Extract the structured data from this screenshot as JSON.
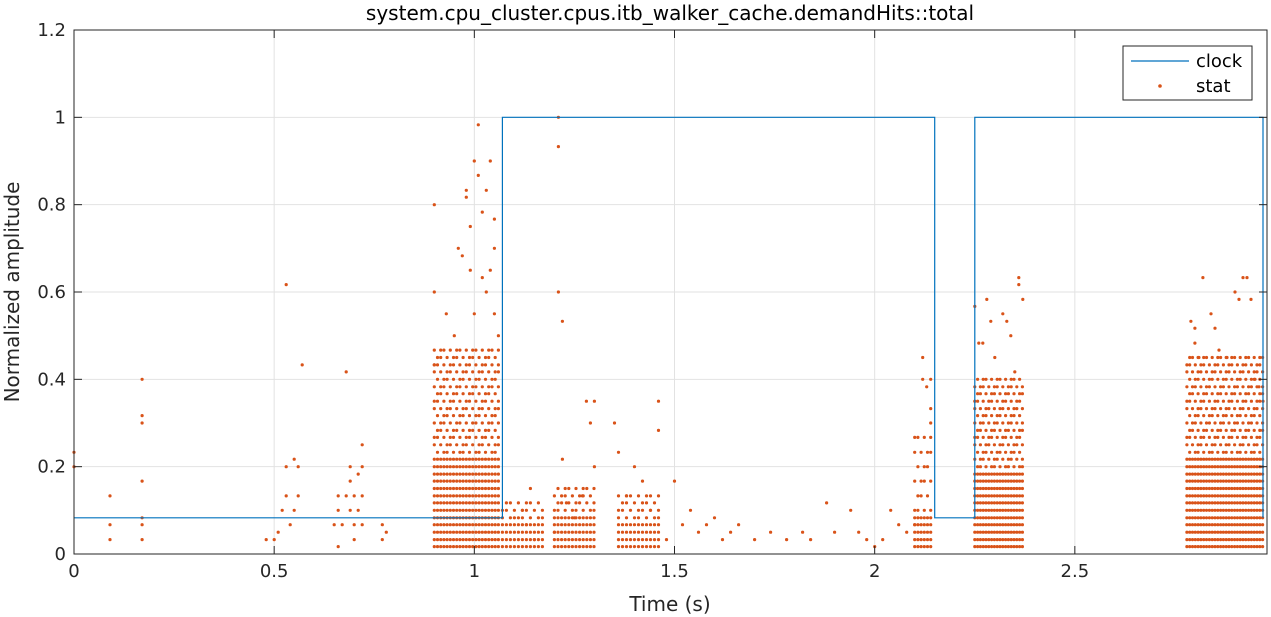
{
  "chart_data": {
    "type": "line",
    "title": "system.cpu_cluster.cpus.itb_walker_cache.demandHits::total",
    "xlabel": "Time (s)",
    "ylabel": "Normalized amplitude",
    "xlim": [
      0,
      2.98
    ],
    "ylim": [
      0,
      1.2
    ],
    "xticks": [
      "0",
      "0.5",
      "1",
      "1.5",
      "2",
      "2.5"
    ],
    "xtick_values": [
      0,
      0.5,
      1,
      1.5,
      2,
      2.5
    ],
    "yticks": [
      "0",
      "0.2",
      "0.4",
      "0.6",
      "0.8",
      "1",
      "1.2"
    ],
    "ytick_values": [
      0,
      0.2,
      0.4,
      0.6,
      0.8,
      1.0,
      1.2
    ],
    "grid": true,
    "legend_position": "top-right",
    "series": [
      {
        "name": "clock",
        "style": "line",
        "color": "#0072BD",
        "x": [
          0,
          1.07,
          1.07,
          2.15,
          2.15,
          2.25,
          2.25,
          2.97,
          2.97
        ],
        "y": [
          0.083,
          0.083,
          1.0,
          1.0,
          0.083,
          0.083,
          1.0,
          1.0,
          0.083
        ]
      },
      {
        "name": "stat",
        "style": "points",
        "color": "#D95319",
        "points": [
          [
            0.0,
            0.2
          ],
          [
            0.0,
            0.233
          ],
          [
            0.09,
            0.033
          ],
          [
            0.09,
            0.067
          ],
          [
            0.09,
            0.133
          ],
          [
            0.17,
            0.033
          ],
          [
            0.17,
            0.067
          ],
          [
            0.17,
            0.083
          ],
          [
            0.17,
            0.167
          ],
          [
            0.17,
            0.3
          ],
          [
            0.17,
            0.317
          ],
          [
            0.17,
            0.4
          ],
          [
            0.48,
            0.033
          ],
          [
            0.5,
            0.033
          ],
          [
            0.51,
            0.05
          ],
          [
            0.52,
            0.1
          ],
          [
            0.53,
            0.133
          ],
          [
            0.53,
            0.2
          ],
          [
            0.53,
            0.617
          ],
          [
            0.54,
            0.067
          ],
          [
            0.55,
            0.1
          ],
          [
            0.55,
            0.217
          ],
          [
            0.56,
            0.133
          ],
          [
            0.56,
            0.2
          ],
          [
            0.57,
            0.433
          ],
          [
            0.65,
            0.067
          ],
          [
            0.66,
            0.1
          ],
          [
            0.66,
            0.133
          ],
          [
            0.66,
            0.017
          ],
          [
            0.67,
            0.067
          ],
          [
            0.68,
            0.133
          ],
          [
            0.68,
            0.417
          ],
          [
            0.69,
            0.1
          ],
          [
            0.69,
            0.167
          ],
          [
            0.69,
            0.2
          ],
          [
            0.7,
            0.067
          ],
          [
            0.7,
            0.133
          ],
          [
            0.7,
            0.033
          ],
          [
            0.71,
            0.183
          ],
          [
            0.71,
            0.1
          ],
          [
            0.72,
            0.067
          ],
          [
            0.72,
            0.25
          ],
          [
            0.72,
            0.2
          ],
          [
            0.72,
            0.133
          ],
          [
            0.77,
            0.067
          ],
          [
            0.77,
            0.033
          ],
          [
            0.78,
            0.05
          ],
          [
            0.9,
            0.8
          ],
          [
            0.9,
            0.6
          ],
          [
            0.9,
            0.433
          ],
          [
            0.93,
            0.55
          ],
          [
            0.95,
            0.5
          ],
          [
            0.96,
            0.7
          ],
          [
            0.97,
            0.683
          ],
          [
            0.98,
            0.833
          ],
          [
            0.98,
            0.817
          ],
          [
            0.99,
            0.75
          ],
          [
            0.99,
            0.65
          ],
          [
            1.0,
            0.9
          ],
          [
            1.0,
            0.55
          ],
          [
            1.01,
            0.983
          ],
          [
            1.01,
            0.867
          ],
          [
            1.02,
            0.783
          ],
          [
            1.02,
            0.633
          ],
          [
            1.03,
            0.6
          ],
          [
            1.03,
            0.833
          ],
          [
            1.04,
            0.9
          ],
          [
            1.04,
            0.65
          ],
          [
            1.05,
            0.7
          ],
          [
            1.05,
            0.767
          ],
          [
            1.05,
            0.55
          ],
          [
            1.06,
            0.5
          ],
          [
            1.1,
            0.083
          ],
          [
            1.12,
            0.1
          ],
          [
            1.13,
            0.067
          ],
          [
            1.14,
            0.15
          ],
          [
            1.15,
            0.033
          ],
          [
            1.2,
            0.05
          ],
          [
            1.21,
            1.0
          ],
          [
            1.21,
            0.933
          ],
          [
            1.21,
            0.6
          ],
          [
            1.22,
            0.533
          ],
          [
            1.22,
            0.217
          ],
          [
            1.23,
            0.117
          ],
          [
            1.25,
            0.083
          ],
          [
            1.27,
            0.133
          ],
          [
            1.28,
            0.35
          ],
          [
            1.29,
            0.3
          ],
          [
            1.3,
            0.35
          ],
          [
            1.3,
            0.2
          ],
          [
            1.35,
            0.3
          ],
          [
            1.36,
            0.233
          ],
          [
            1.38,
            0.133
          ],
          [
            1.4,
            0.2
          ],
          [
            1.42,
            0.167
          ],
          [
            1.44,
            0.1
          ],
          [
            1.46,
            0.35
          ],
          [
            1.46,
            0.283
          ],
          [
            1.48,
            0.033
          ],
          [
            1.5,
            0.167
          ],
          [
            1.52,
            0.067
          ],
          [
            1.54,
            0.1
          ],
          [
            1.56,
            0.05
          ],
          [
            1.58,
            0.067
          ],
          [
            1.6,
            0.083
          ],
          [
            1.62,
            0.033
          ],
          [
            1.64,
            0.05
          ],
          [
            1.66,
            0.067
          ],
          [
            1.7,
            0.033
          ],
          [
            1.74,
            0.05
          ],
          [
            1.78,
            0.033
          ],
          [
            1.82,
            0.05
          ],
          [
            1.84,
            0.033
          ],
          [
            1.88,
            0.117
          ],
          [
            1.9,
            0.05
          ],
          [
            1.94,
            0.1
          ],
          [
            1.96,
            0.05
          ],
          [
            1.98,
            0.033
          ],
          [
            2.0,
            0.017
          ],
          [
            2.02,
            0.033
          ],
          [
            2.04,
            0.1
          ],
          [
            2.06,
            0.067
          ],
          [
            2.08,
            0.05
          ],
          [
            2.1,
            0.067
          ],
          [
            2.12,
            0.45
          ],
          [
            2.12,
            0.4
          ],
          [
            2.13,
            0.383
          ],
          [
            2.14,
            0.4
          ],
          [
            2.14,
            0.333
          ],
          [
            2.14,
            0.3
          ],
          [
            2.25,
            0.567
          ],
          [
            2.26,
            0.483
          ],
          [
            2.27,
            0.483
          ],
          [
            2.28,
            0.583
          ],
          [
            2.29,
            0.533
          ],
          [
            2.3,
            0.45
          ],
          [
            2.32,
            0.55
          ],
          [
            2.33,
            0.533
          ],
          [
            2.34,
            0.5
          ],
          [
            2.35,
            0.417
          ],
          [
            2.36,
            0.617
          ],
          [
            2.36,
            0.633
          ],
          [
            2.37,
            0.583
          ],
          [
            2.79,
            0.533
          ],
          [
            2.8,
            0.517
          ],
          [
            2.8,
            0.483
          ],
          [
            2.81,
            0.45
          ],
          [
            2.82,
            0.633
          ],
          [
            2.84,
            0.55
          ],
          [
            2.85,
            0.517
          ],
          [
            2.86,
            0.467
          ],
          [
            2.88,
            0.45
          ],
          [
            2.9,
            0.6
          ],
          [
            2.91,
            0.583
          ],
          [
            2.92,
            0.633
          ],
          [
            2.93,
            0.633
          ],
          [
            2.94,
            0.583
          ],
          [
            2.95,
            0.4
          ],
          [
            2.96,
            0.383
          ],
          [
            2.97,
            0.35
          ]
        ],
        "clusters": [
          {
            "x0": 0.9,
            "x1": 1.065,
            "dx": 0.008,
            "levels": [
              0.017,
              0.033,
              0.05,
              0.067,
              0.083,
              0.1,
              0.117,
              0.133,
              0.15,
              0.167,
              0.183,
              0.2,
              0.217,
              0.233,
              0.25,
              0.267,
              0.283,
              0.3,
              0.317,
              0.333,
              0.35,
              0.367,
              0.383,
              0.4,
              0.417,
              0.433,
              0.45,
              0.467
            ]
          },
          {
            "x0": 1.07,
            "x1": 1.17,
            "dx": 0.01,
            "levels": [
              0.017,
              0.033,
              0.05,
              0.067,
              0.083,
              0.1,
              0.117
            ]
          },
          {
            "x0": 1.2,
            "x1": 1.3,
            "dx": 0.009,
            "levels": [
              0.017,
              0.033,
              0.05,
              0.067,
              0.083,
              0.1,
              0.117,
              0.133,
              0.15
            ]
          },
          {
            "x0": 1.36,
            "x1": 1.46,
            "dx": 0.01,
            "levels": [
              0.017,
              0.033,
              0.05,
              0.067,
              0.083,
              0.1,
              0.117,
              0.133
            ]
          },
          {
            "x0": 2.1,
            "x1": 2.145,
            "dx": 0.008,
            "levels": [
              0.017,
              0.033,
              0.05,
              0.067,
              0.083,
              0.1,
              0.133,
              0.167,
              0.2,
              0.233,
              0.267
            ]
          },
          {
            "x0": 2.25,
            "x1": 2.37,
            "dx": 0.007,
            "levels": [
              0.017,
              0.033,
              0.05,
              0.067,
              0.083,
              0.1,
              0.117,
              0.133,
              0.15,
              0.167,
              0.183,
              0.2,
              0.217,
              0.233,
              0.25,
              0.267,
              0.283,
              0.3,
              0.317,
              0.333,
              0.35,
              0.367,
              0.383,
              0.4
            ]
          },
          {
            "x0": 2.78,
            "x1": 2.975,
            "dx": 0.007,
            "levels": [
              0.017,
              0.033,
              0.05,
              0.067,
              0.083,
              0.1,
              0.117,
              0.133,
              0.15,
              0.167,
              0.183,
              0.2,
              0.217,
              0.233,
              0.25,
              0.267,
              0.283,
              0.3,
              0.317,
              0.333,
              0.35,
              0.367,
              0.383,
              0.4,
              0.417,
              0.433,
              0.45
            ]
          }
        ]
      }
    ]
  },
  "legend": {
    "clock_label": "clock",
    "stat_label": "stat"
  }
}
